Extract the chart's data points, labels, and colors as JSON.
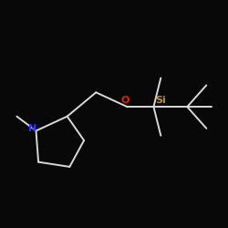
{
  "background_color": "#080808",
  "bond_color": "#d8d8d8",
  "N_color": "#3333ff",
  "O_color": "#dd2200",
  "Si_color": "#b8903a",
  "bond_width": 1.4,
  "figsize": [
    2.5,
    2.5
  ],
  "dpi": 100,
  "N_label": "N",
  "O_label": "O",
  "Si_label": "Si",
  "font_size_N": 8,
  "font_size_O": 8,
  "font_size_Si": 8
}
